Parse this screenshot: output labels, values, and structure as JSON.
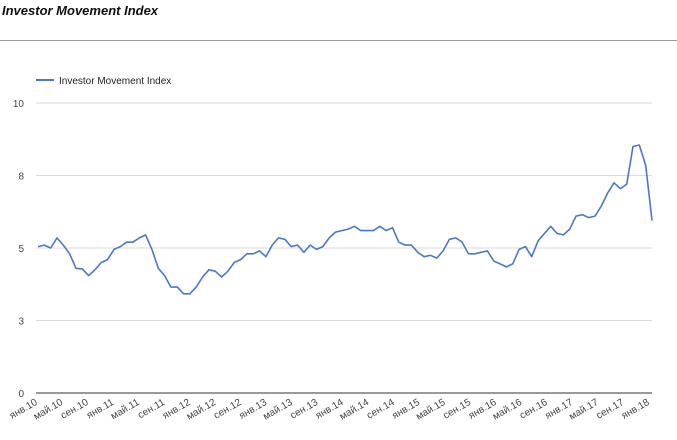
{
  "header": {
    "title": "Investor Movement Index"
  },
  "chart_data": {
    "type": "line",
    "title": "Investor Movement Index",
    "xlabel": "",
    "ylabel": "",
    "ylim": [
      0,
      10
    ],
    "y_ticks": [
      {
        "value": 0,
        "label": "0"
      },
      {
        "value": 2.5,
        "label": "3"
      },
      {
        "value": 5,
        "label": "5"
      },
      {
        "value": 7.5,
        "label": "8"
      },
      {
        "value": 10,
        "label": "10"
      }
    ],
    "x_tick_labels": [
      "янв.10",
      "май.10",
      "сен.10",
      "янв.11",
      "май.11",
      "сен.11",
      "янв.12",
      "май.12",
      "сен.12",
      "янв.13",
      "май.13",
      "сен.13",
      "янв.14",
      "май.14",
      "сен.14",
      "янв.15",
      "май.15",
      "сен.15",
      "янв.16",
      "май.16",
      "сен.16",
      "янв.17",
      "май.17",
      "сен.17",
      "янв.18"
    ],
    "grid": true,
    "legend": "top-left",
    "series": [
      {
        "name": "Investor Movement Index",
        "color": "#4a78c9",
        "values": [
          5.05,
          5.1,
          5.0,
          5.35,
          5.1,
          4.8,
          4.3,
          4.28,
          4.05,
          4.25,
          4.5,
          4.6,
          4.95,
          5.05,
          5.2,
          5.2,
          5.35,
          5.45,
          4.95,
          4.3,
          4.05,
          3.65,
          3.65,
          3.42,
          3.42,
          3.65,
          4.0,
          4.25,
          4.2,
          4.0,
          4.2,
          4.5,
          4.6,
          4.8,
          4.8,
          4.9,
          4.7,
          5.1,
          5.35,
          5.3,
          5.05,
          5.1,
          4.85,
          5.1,
          4.95,
          5.05,
          5.35,
          5.55,
          5.6,
          5.65,
          5.75,
          5.6,
          5.6,
          5.6,
          5.75,
          5.6,
          5.7,
          5.2,
          5.1,
          5.1,
          4.85,
          4.7,
          4.75,
          4.65,
          4.9,
          5.3,
          5.35,
          5.2,
          4.8,
          4.8,
          4.85,
          4.9,
          4.55,
          4.45,
          4.35,
          4.45,
          4.95,
          5.05,
          4.7,
          5.25,
          5.5,
          5.75,
          5.5,
          5.45,
          5.65,
          6.1,
          6.15,
          6.05,
          6.1,
          6.45,
          6.9,
          7.25,
          7.05,
          7.2,
          8.5,
          8.55,
          7.85,
          5.95
        ]
      }
    ]
  }
}
